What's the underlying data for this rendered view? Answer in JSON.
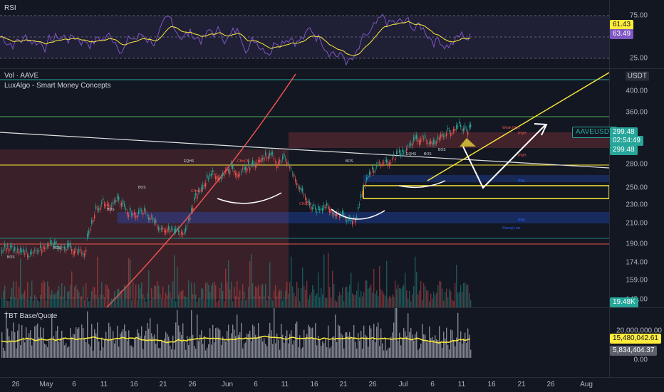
{
  "rsi": {
    "title": "RSI",
    "ticks": [
      "75.00",
      "25.00"
    ],
    "value1": "61.43",
    "value2": "63.49",
    "value1_color": "#ffeb3b",
    "value2_color": "#7e57c2"
  },
  "main": {
    "vol_label": "Vol · AAVE",
    "indicator_label": "LuxAlgo - Smart Money Concepts",
    "currency": "USDT",
    "price_ticks": [
      "400.00",
      "360.00",
      "280.00",
      "250.00",
      "230.00",
      "210.00",
      "190.00",
      "174.00",
      "159.00",
      "145.00"
    ],
    "symbol_badge": "AAVEUSDT",
    "price_badge": "299.48",
    "countdown": "02:54:49",
    "price_badge2": "299.48",
    "volume_badge": "19.48K",
    "annotations": [
      "BOS",
      "BOS",
      "BOS",
      "EQHS",
      "BOS",
      "CHoCH",
      "CHoCH",
      "CHoCH",
      "BOS",
      "EQHS",
      "BOS",
      "BOS",
      "Weak High",
      "PWH",
      "PWH",
      "PWL",
      "PWL",
      "Strong Low"
    ],
    "colors": {
      "bull": "#26a69a",
      "bear": "#ef5350",
      "trend": "#ffeb3b",
      "accent": "#2962ff"
    }
  },
  "tbt": {
    "title": "TBT Base/Quote",
    "tick_top": "20,000,000.00",
    "tick_bottom": "0.00",
    "value1": "15,480,042.61",
    "value2": "5,834,404.37"
  },
  "xaxis": [
    "26",
    "May",
    "6",
    "11",
    "16",
    "21",
    "26",
    "Jun",
    "6",
    "11",
    "16",
    "21",
    "26",
    "Jul",
    "6",
    "11",
    "16",
    "21",
    "26",
    "Aug"
  ]
}
